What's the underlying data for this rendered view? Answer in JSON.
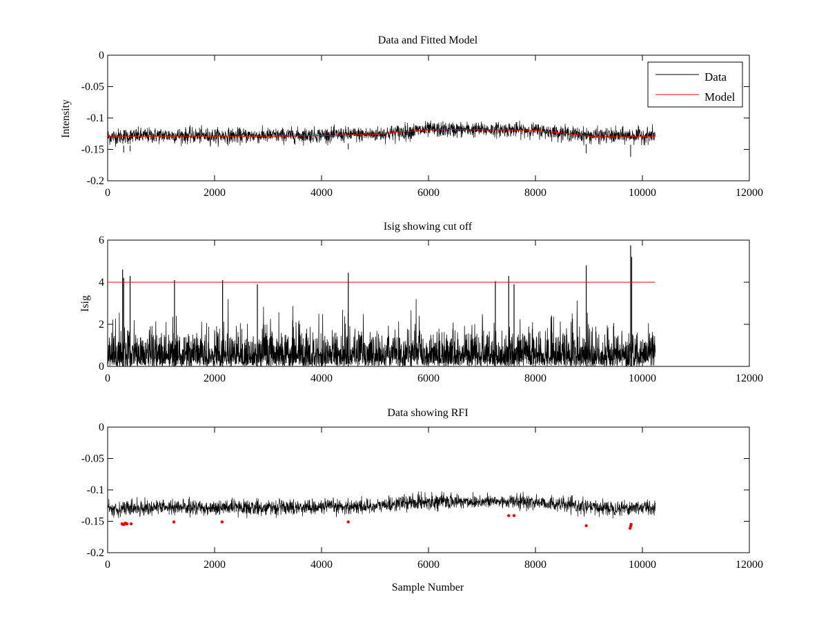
{
  "chart_data": [
    {
      "type": "line",
      "title": "Data and Fitted Model",
      "xlabel": "",
      "ylabel": "Intensity",
      "xlim": [
        0,
        12000
      ],
      "ylim": [
        -0.2,
        0
      ],
      "xticks": [
        0,
        2000,
        4000,
        6000,
        8000,
        10000,
        12000
      ],
      "xtick_labels": [
        "0",
        "2000",
        "4000",
        "6000",
        "8000",
        "10000",
        "12000"
      ],
      "yticks": [
        -0.2,
        -0.15,
        -0.1,
        -0.05,
        0
      ],
      "ytick_labels": [
        "-0.2",
        "-0.15",
        "-0.1",
        "-0.05",
        "0"
      ],
      "legend": {
        "position": "top-right",
        "entries": [
          "Data",
          "Model"
        ]
      },
      "series": [
        {
          "name": "Data",
          "color": "#000000",
          "description": "noisy signal, 10240 samples",
          "n_samples": 10240,
          "envelope_x": [
            0,
            1000,
            2000,
            3000,
            4000,
            5000,
            5500,
            6000,
            6500,
            7000,
            7500,
            8000,
            8500,
            9000,
            9500,
            10240
          ],
          "envelope_low": [
            -0.145,
            -0.142,
            -0.143,
            -0.142,
            -0.141,
            -0.14,
            -0.138,
            -0.133,
            -0.133,
            -0.132,
            -0.132,
            -0.133,
            -0.137,
            -0.142,
            -0.143,
            -0.142
          ],
          "envelope_high": [
            -0.115,
            -0.113,
            -0.114,
            -0.114,
            -0.113,
            -0.112,
            -0.107,
            -0.104,
            -0.104,
            -0.105,
            -0.105,
            -0.106,
            -0.11,
            -0.114,
            -0.114,
            -0.113
          ],
          "spikes": [
            [
              300,
              -0.155
            ],
            [
              420,
              -0.153
            ],
            [
              9780,
              -0.162
            ],
            [
              4500,
              -0.15
            ],
            [
              8950,
              -0.156
            ]
          ]
        },
        {
          "name": "Model",
          "color": "#ff0000",
          "x": [
            0,
            1000,
            2000,
            3000,
            4000,
            5000,
            5500,
            6000,
            6500,
            7000,
            7500,
            8000,
            8500,
            9000,
            9500,
            10240
          ],
          "y": [
            -0.129,
            -0.129,
            -0.129,
            -0.129,
            -0.128,
            -0.126,
            -0.122,
            -0.119,
            -0.118,
            -0.119,
            -0.119,
            -0.12,
            -0.124,
            -0.129,
            -0.13,
            -0.129
          ]
        }
      ]
    },
    {
      "type": "line",
      "title": "Isig showing cut off",
      "xlabel": "",
      "ylabel": "Isig",
      "xlim": [
        0,
        12000
      ],
      "ylim": [
        0,
        6
      ],
      "xticks": [
        0,
        2000,
        4000,
        6000,
        8000,
        10000,
        12000
      ],
      "xtick_labels": [
        "0",
        "2000",
        "4000",
        "6000",
        "8000",
        "10000",
        "12000"
      ],
      "yticks": [
        0,
        2,
        4,
        6
      ],
      "ytick_labels": [
        "0",
        "2",
        "4",
        "6"
      ],
      "series": [
        {
          "name": "Isig",
          "color": "#000000",
          "n_samples": 10240,
          "description": "absolute deviation signal, dense 0 to ~2.5 with spikes",
          "peaks": [
            [
              280,
              4.6
            ],
            [
              300,
              4.2
            ],
            [
              420,
              4.3
            ],
            [
              1250,
              4.1
            ],
            [
              2150,
              4.1
            ],
            [
              2800,
              3.9
            ],
            [
              4500,
              4.45
            ],
            [
              7250,
              4.05
            ],
            [
              7500,
              4.3
            ],
            [
              7600,
              3.9
            ],
            [
              8950,
              4.8
            ],
            [
              9780,
              5.75
            ],
            [
              9800,
              5.2
            ]
          ]
        },
        {
          "name": "Cut off",
          "color": "#ff0000",
          "x": [
            0,
            10240
          ],
          "y": [
            4,
            4
          ]
        }
      ]
    },
    {
      "type": "line",
      "title": "Data showing RFI",
      "xlabel": "Sample Number",
      "ylabel": "",
      "xlim": [
        0,
        12000
      ],
      "ylim": [
        -0.2,
        0
      ],
      "xticks": [
        0,
        2000,
        4000,
        6000,
        8000,
        10000,
        12000
      ],
      "xtick_labels": [
        "0",
        "2000",
        "4000",
        "6000",
        "8000",
        "10000",
        "12000"
      ],
      "yticks": [
        -0.2,
        -0.15,
        -0.1,
        -0.05,
        0
      ],
      "ytick_labels": [
        "-0.2",
        "-0.15",
        "-0.1",
        "-0.05",
        "0"
      ],
      "series": [
        {
          "name": "Data",
          "color": "#000000",
          "n_samples": 10240,
          "envelope_x": [
            0,
            1000,
            2000,
            3000,
            4000,
            5000,
            5500,
            6000,
            6500,
            7000,
            7500,
            8000,
            8500,
            9000,
            9500,
            10240
          ],
          "envelope_low": [
            -0.145,
            -0.142,
            -0.143,
            -0.142,
            -0.141,
            -0.14,
            -0.135,
            -0.133,
            -0.133,
            -0.132,
            -0.132,
            -0.133,
            -0.137,
            -0.142,
            -0.143,
            -0.142
          ],
          "envelope_high": [
            -0.115,
            -0.113,
            -0.114,
            -0.114,
            -0.113,
            -0.112,
            -0.107,
            -0.104,
            -0.104,
            -0.105,
            -0.105,
            -0.106,
            -0.11,
            -0.114,
            -0.114,
            -0.113
          ]
        },
        {
          "name": "RFI",
          "color": "#ff0000",
          "marker": "dot",
          "points": [
            [
              270,
              -0.154
            ],
            [
              290,
              -0.155
            ],
            [
              310,
              -0.155
            ],
            [
              330,
              -0.153
            ],
            [
              360,
              -0.154
            ],
            [
              440,
              -0.154
            ],
            [
              1240,
              -0.151
            ],
            [
              2140,
              -0.151
            ],
            [
              4500,
              -0.151
            ],
            [
              7500,
              -0.141
            ],
            [
              7600,
              -0.141
            ],
            [
              8950,
              -0.157
            ],
            [
              9770,
              -0.161
            ],
            [
              9780,
              -0.158
            ],
            [
              9790,
              -0.155
            ]
          ]
        }
      ]
    }
  ]
}
